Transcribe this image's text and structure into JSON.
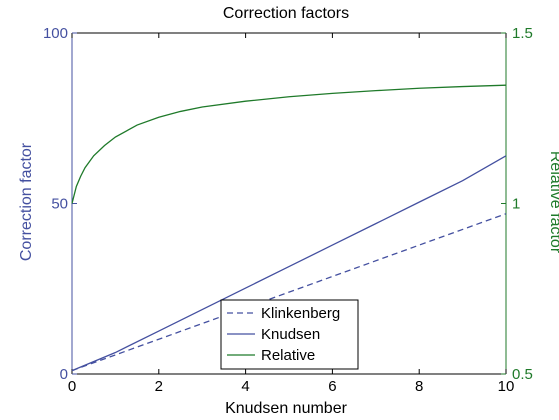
{
  "chart_data": {
    "type": "line",
    "title": "Correction factors",
    "xlabel": "Knudsen number",
    "ylabel_left": "Correction factor",
    "ylabel_right": "Relative factor",
    "xlim": [
      0,
      10
    ],
    "ylim_left": [
      0,
      100
    ],
    "ylim_right": [
      0.5,
      1.5
    ],
    "xticks": [
      "0",
      "2",
      "4",
      "6",
      "8",
      "10"
    ],
    "yticks_left": [
      "0",
      "50",
      "100"
    ],
    "yticks_right": [
      "0.5",
      "1",
      "1.5"
    ],
    "legend_position": "bottom-center",
    "grid": false,
    "colors": {
      "left_axis": "#4450a0",
      "right_axis": "#1f7a2a"
    },
    "series": [
      {
        "name": "Klinkenberg",
        "axis": "left",
        "style": "dashed",
        "color": "#4450a0",
        "x": [
          0,
          2,
          4,
          6,
          8,
          10
        ],
        "y": [
          1,
          10.2,
          19.4,
          28.6,
          37.8,
          47
        ]
      },
      {
        "name": "Knudsen",
        "axis": "left",
        "style": "solid",
        "color": "#4450a0",
        "x": [
          0,
          1,
          2,
          3,
          4,
          5,
          6,
          7,
          8,
          9,
          10
        ],
        "y": [
          1,
          6.3,
          12.6,
          18.9,
          25.2,
          31.5,
          37.8,
          44.1,
          50.4,
          56.7,
          64
        ]
      },
      {
        "name": "Relative",
        "axis": "right",
        "style": "solid",
        "color": "#1f7a2a",
        "x": [
          0,
          0.1,
          0.2,
          0.3,
          0.5,
          0.75,
          1,
          1.5,
          2,
          2.5,
          3,
          4,
          5,
          6,
          7,
          8,
          9,
          10
        ],
        "y": [
          1.0,
          1.05,
          1.08,
          1.105,
          1.14,
          1.17,
          1.195,
          1.23,
          1.253,
          1.27,
          1.283,
          1.3,
          1.313,
          1.323,
          1.331,
          1.338,
          1.343,
          1.347
        ]
      }
    ]
  }
}
